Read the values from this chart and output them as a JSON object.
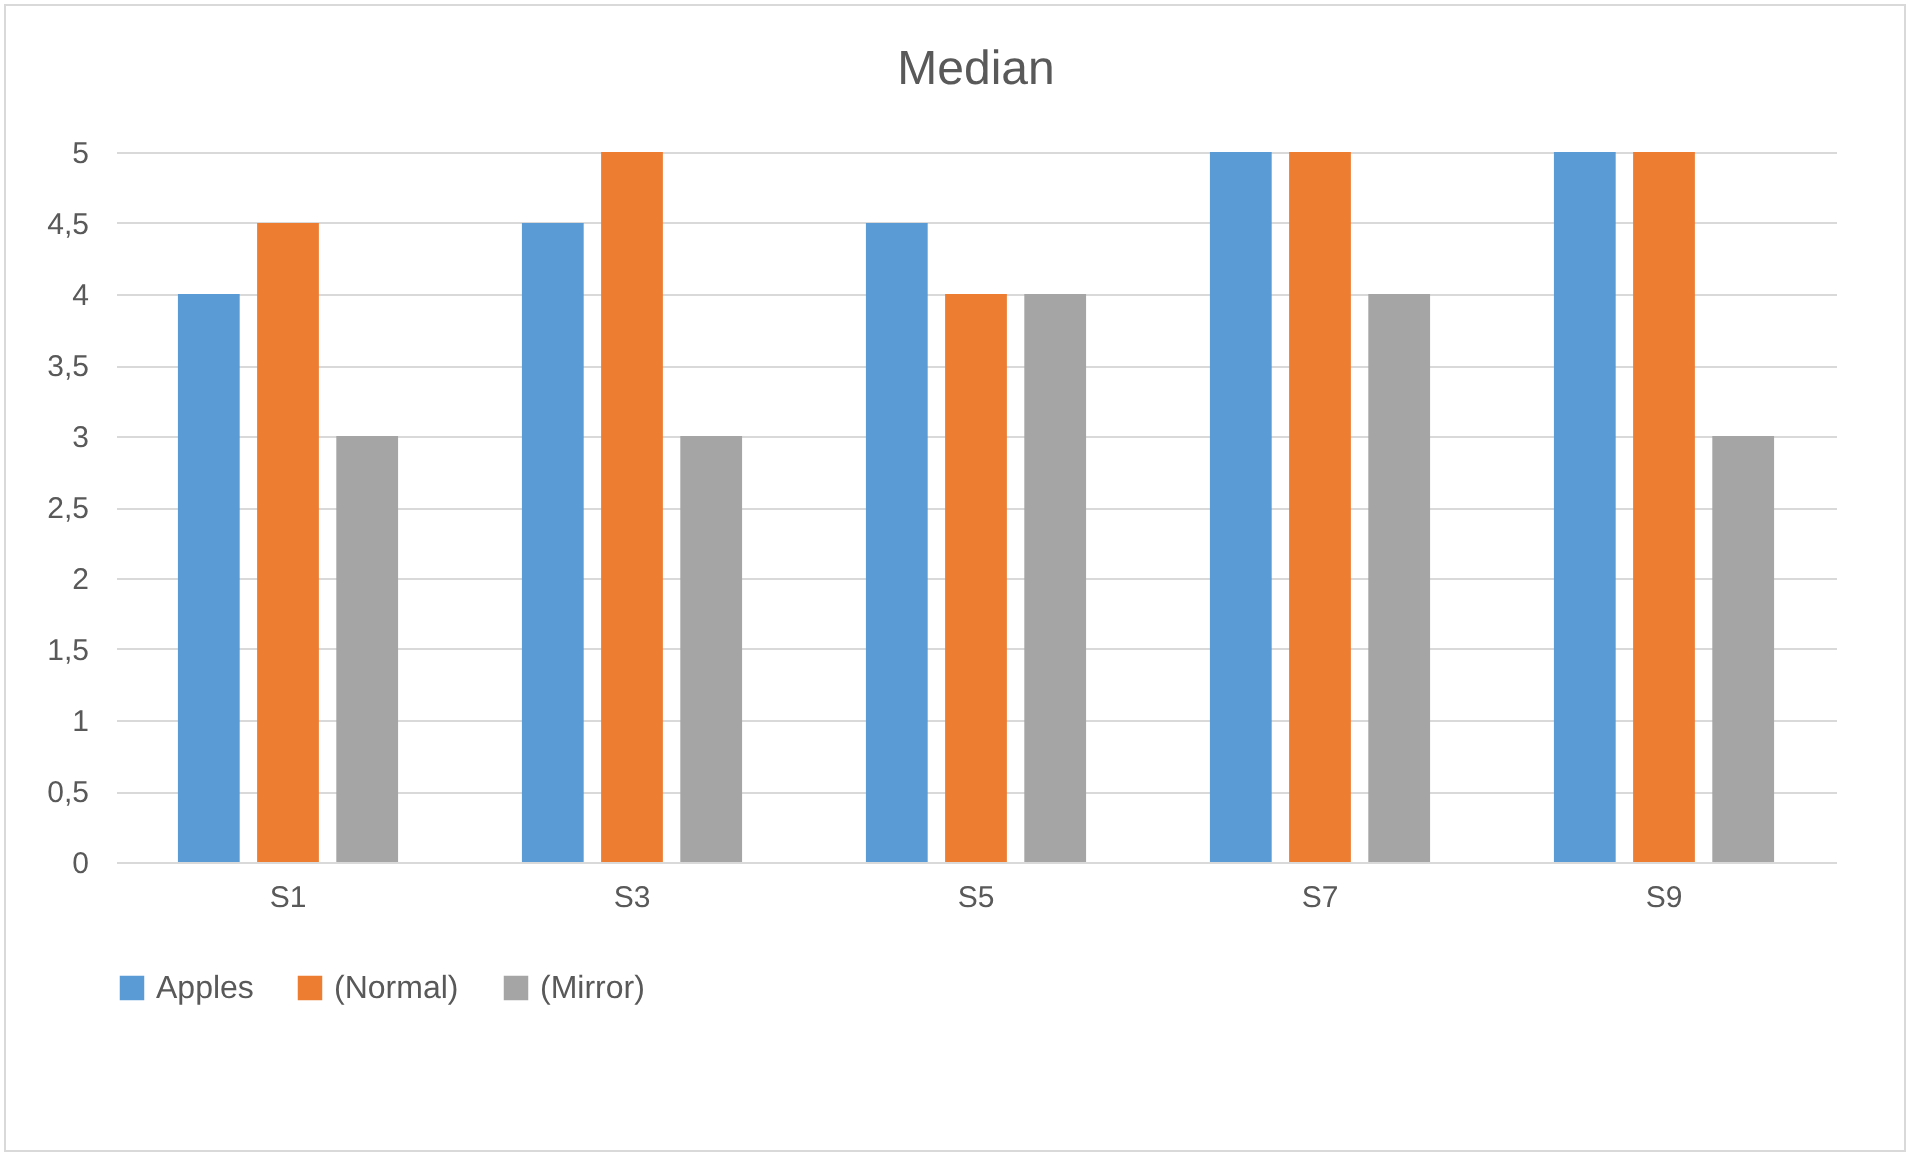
{
  "chart_data": {
    "type": "bar",
    "title": "Median",
    "categories": [
      "S1",
      "S3",
      "S5",
      "S7",
      "S9"
    ],
    "series": [
      {
        "name": "Apples",
        "color": "#5b9bd5",
        "values": [
          4,
          4.5,
          4.5,
          5,
          5
        ]
      },
      {
        "name": "(Normal)",
        "color": "#ed7d31",
        "values": [
          4.5,
          5,
          4,
          5,
          5
        ]
      },
      {
        "name": "(Mirror)",
        "color": "#a5a5a5",
        "values": [
          3,
          3,
          4,
          4,
          3
        ]
      }
    ],
    "ylim": [
      0,
      5
    ],
    "yticks": [
      0,
      {
        "value": 0.5,
        "label": "0,5"
      },
      1,
      {
        "value": 1.5,
        "label": "1,5"
      },
      2,
      {
        "value": 2.5,
        "label": "2,5"
      },
      3,
      {
        "value": 3.5,
        "label": "3,5"
      },
      4,
      {
        "value": 4.5,
        "label": "4,5"
      },
      5
    ],
    "grid": "y",
    "legend": "bottom"
  }
}
